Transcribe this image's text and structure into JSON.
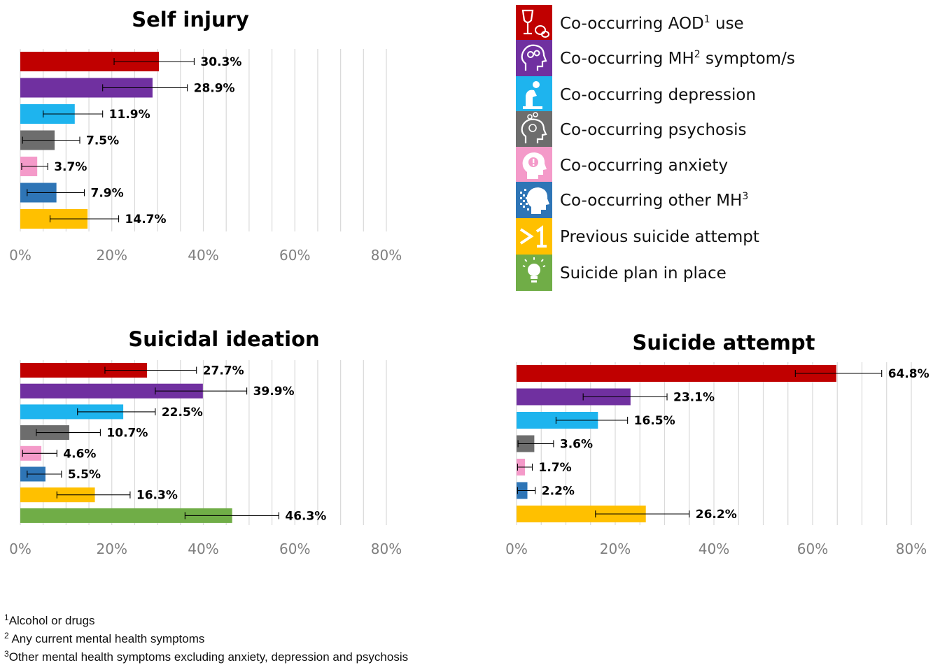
{
  "colors": {
    "aod": "#c00000",
    "mh": "#7030a0",
    "depression": "#1eb4ee",
    "psychosis": "#6d6d6d",
    "anxiety": "#f49ac9",
    "other_mh": "#2e75b6",
    "previous_attempt": "#ffc000",
    "plan": "#70ad47",
    "grid": "#d9d9d9",
    "errorbar": "#000000"
  },
  "legend": {
    "items": [
      {
        "key": "aod",
        "label": "Co-occurring AOD",
        "sup": "1",
        "suffix": " use",
        "icon": "wine-pills-icon"
      },
      {
        "key": "mh",
        "label": "Co-occurring MH",
        "sup": "2",
        "suffix": " symptom/s",
        "icon": "head-gears-icon"
      },
      {
        "key": "depression",
        "label": "Co-occurring depression",
        "sup": "",
        "suffix": "",
        "icon": "sitting-person-icon"
      },
      {
        "key": "psychosis",
        "label": "Co-occurring psychosis",
        "sup": "",
        "suffix": "",
        "icon": "head-swirl-icon"
      },
      {
        "key": "anxiety",
        "label": "Co-occurring anxiety",
        "sup": "",
        "suffix": "",
        "icon": "head-exclamation-icon"
      },
      {
        "key": "other_mh",
        "label": "Co-occurring other MH",
        "sup": "3",
        "suffix": "",
        "icon": "pixel-head-icon"
      },
      {
        "key": "previous_attempt",
        "label": "Previous suicide attempt",
        "sup": "",
        "suffix": "",
        "icon": "greater-than-one-icon"
      },
      {
        "key": "plan",
        "label": "Suicide plan in place",
        "sup": "",
        "suffix": "",
        "icon": "lightbulb-icon"
      }
    ]
  },
  "chart_data": [
    {
      "type": "bar",
      "orientation": "horizontal",
      "title": "Self injury",
      "xlim": [
        0,
        80
      ],
      "xticks": [
        "0%",
        "20%",
        "40%",
        "60%",
        "80%"
      ],
      "grid": true,
      "bars": [
        {
          "key": "aod",
          "value": 30.3,
          "label": "30.3%",
          "err": [
            20.5,
            38.0
          ]
        },
        {
          "key": "mh",
          "value": 28.9,
          "label": "28.9%",
          "err": [
            18.0,
            36.5
          ]
        },
        {
          "key": "depression",
          "value": 11.9,
          "label": "11.9%",
          "err": [
            5.0,
            18.0
          ]
        },
        {
          "key": "psychosis",
          "value": 7.5,
          "label": "7.5%",
          "err": [
            0.5,
            13.0
          ]
        },
        {
          "key": "anxiety",
          "value": 3.7,
          "label": "3.7%",
          "err": [
            0.3,
            6.0
          ]
        },
        {
          "key": "other_mh",
          "value": 7.9,
          "label": "7.9%",
          "err": [
            1.5,
            14.0
          ]
        },
        {
          "key": "previous_attempt",
          "value": 14.7,
          "label": "14.7%",
          "err": [
            6.5,
            21.5
          ]
        }
      ]
    },
    {
      "type": "bar",
      "orientation": "horizontal",
      "title": "Suicidal ideation",
      "xlim": [
        0,
        80
      ],
      "xticks": [
        "0%",
        "20%",
        "40%",
        "60%",
        "80%"
      ],
      "grid": true,
      "bars": [
        {
          "key": "aod",
          "value": 27.7,
          "label": "27.7%",
          "err": [
            18.5,
            38.5
          ]
        },
        {
          "key": "mh",
          "value": 39.9,
          "label": "39.9%",
          "err": [
            29.5,
            49.5
          ]
        },
        {
          "key": "depression",
          "value": 22.5,
          "label": "22.5%",
          "err": [
            12.5,
            29.5
          ]
        },
        {
          "key": "psychosis",
          "value": 10.7,
          "label": "10.7%",
          "err": [
            3.5,
            17.5
          ]
        },
        {
          "key": "anxiety",
          "value": 4.6,
          "label": "4.6%",
          "err": [
            0.5,
            8.0
          ]
        },
        {
          "key": "other_mh",
          "value": 5.5,
          "label": "5.5%",
          "err": [
            1.5,
            9.0
          ]
        },
        {
          "key": "previous_attempt",
          "value": 16.3,
          "label": "16.3%",
          "err": [
            8.0,
            24.0
          ]
        },
        {
          "key": "plan",
          "value": 46.3,
          "label": "46.3%",
          "err": [
            36.0,
            56.5
          ]
        }
      ]
    },
    {
      "type": "bar",
      "orientation": "horizontal",
      "title": "Suicide attempt",
      "xlim": [
        0,
        80
      ],
      "xticks": [
        "0%",
        "20%",
        "40%",
        "60%",
        "80%"
      ],
      "grid": true,
      "bars": [
        {
          "key": "aod",
          "value": 64.8,
          "label": "64.8%",
          "err": [
            56.5,
            74.0
          ]
        },
        {
          "key": "mh",
          "value": 23.1,
          "label": "23.1%",
          "err": [
            13.5,
            30.5
          ]
        },
        {
          "key": "depression",
          "value": 16.5,
          "label": "16.5%",
          "err": [
            8.0,
            22.5
          ]
        },
        {
          "key": "psychosis",
          "value": 3.6,
          "label": "3.6%",
          "err": [
            0.3,
            7.5
          ]
        },
        {
          "key": "anxiety",
          "value": 1.7,
          "label": "1.7%",
          "err": [
            0.2,
            3.2
          ]
        },
        {
          "key": "other_mh",
          "value": 2.2,
          "label": "2.2%",
          "err": [
            0.2,
            3.8
          ]
        },
        {
          "key": "previous_attempt",
          "value": 26.2,
          "label": "26.2%",
          "err": [
            16.0,
            35.0
          ]
        }
      ]
    }
  ],
  "footnotes": [
    {
      "mark": "1",
      "text": "Alcohol or drugs"
    },
    {
      "mark": "2",
      "text": " Any current mental health symptoms"
    },
    {
      "mark": "3",
      "text": "Other mental health symptoms excluding anxiety, depression and psychosis"
    }
  ]
}
